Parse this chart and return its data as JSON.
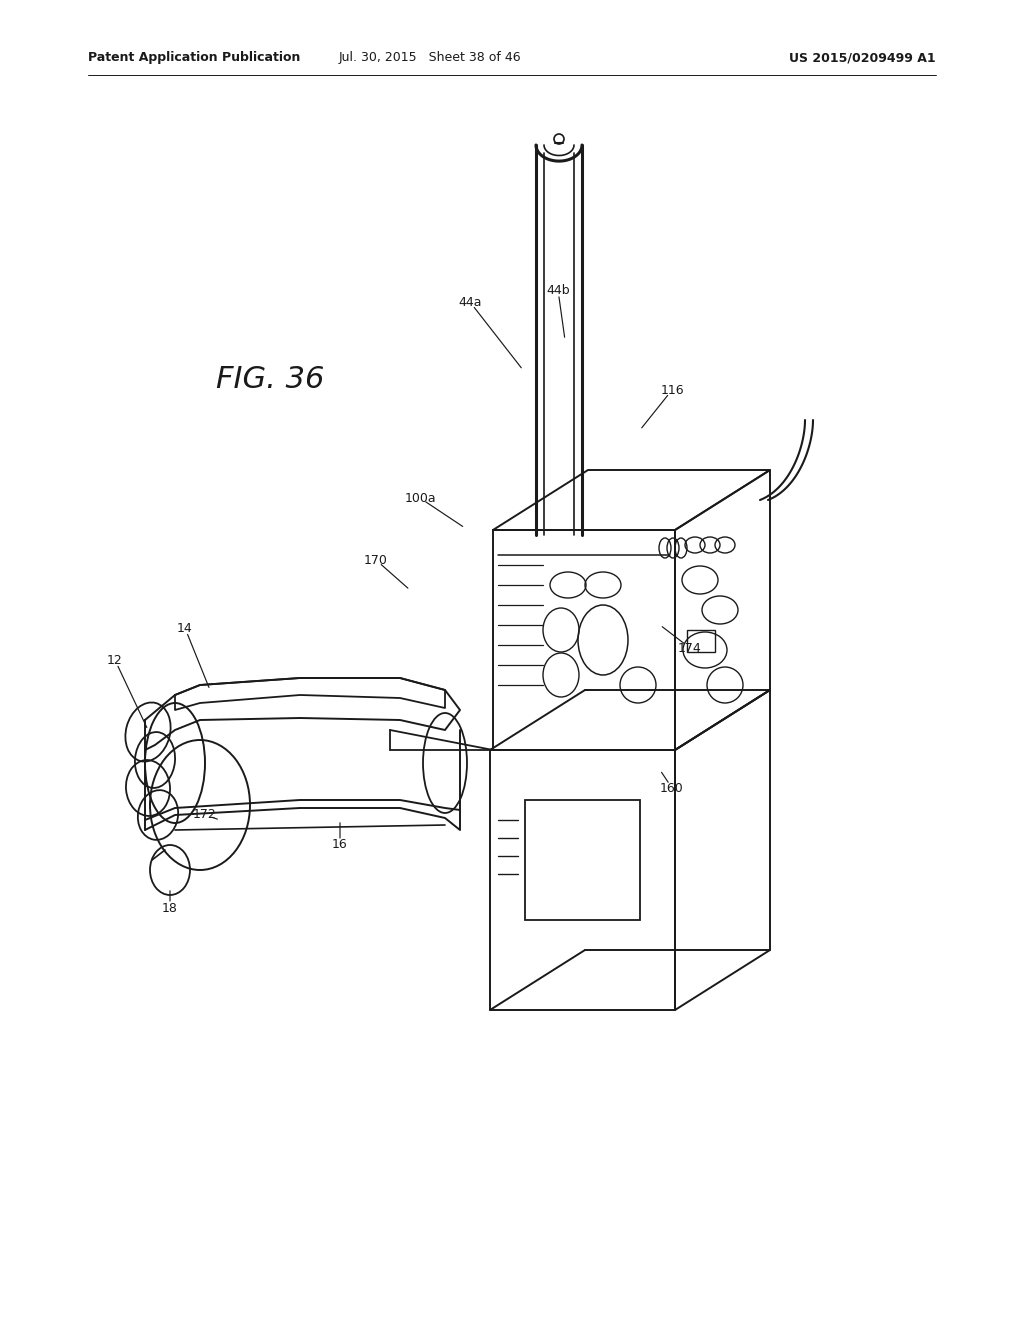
{
  "bg_color": "#ffffff",
  "line_color": "#1a1a1a",
  "title_text": "FIG. 36",
  "header_left": "Patent Application Publication",
  "header_mid": "Jul. 30, 2015   Sheet 38 of 46",
  "header_right": "US 2015/0209499 A1"
}
